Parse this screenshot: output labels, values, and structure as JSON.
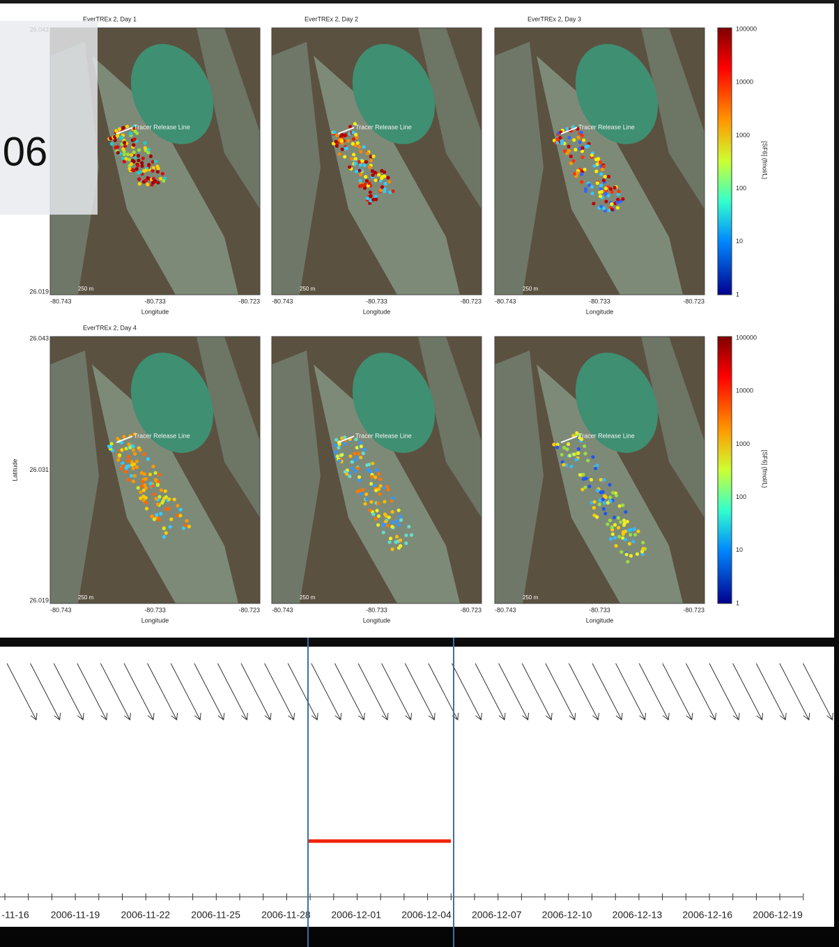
{
  "overlay_text": "06",
  "titles": [
    "EverTREx 2, Day 1",
    "EverTREx 2, Day 2",
    "EverTREx 2, Day 3",
    "EverTREx 2, Day 4"
  ],
  "map_label": "Tracer Release Line",
  "scale_label": "250 m",
  "lat_ticks": [
    "26.043",
    "26.031",
    "26.019"
  ],
  "lon_ticks": [
    "-80.743",
    "-80.733",
    "-80.723"
  ],
  "x_label": "Longitude",
  "y_label": "Latitude",
  "colorbar": {
    "label": "[SF6] (fmol/L)",
    "ticks": [
      "100000",
      "10000",
      "1000",
      "100",
      "10",
      "1"
    ]
  },
  "timeline": {
    "dates": [
      "-11-16",
      "2006-11-19",
      "2006-11-22",
      "2006-11-25",
      "2006-11-28",
      "2006-12-01",
      "2006-12-04",
      "2006-12-07",
      "2006-12-10",
      "2006-12-13",
      "2006-12-16",
      "2006-12-19"
    ]
  }
}
